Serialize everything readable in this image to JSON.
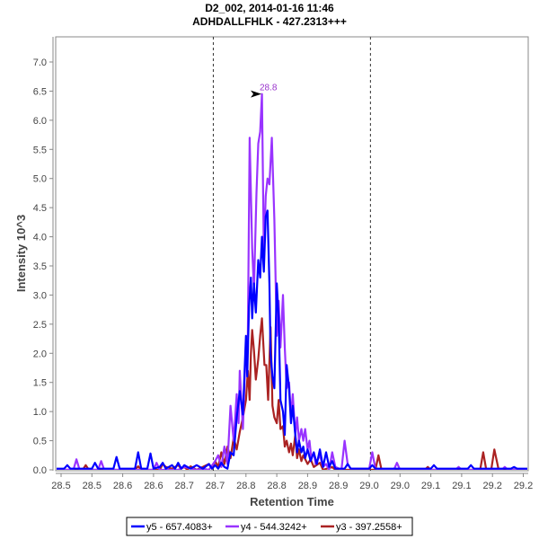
{
  "chart_data": {
    "type": "line",
    "title": "D2_002, 2014-01-16 11:46",
    "subtitle": "ADHDALLFHLK - 427.2313+++",
    "xlabel": "Retention Time",
    "ylabel": "Intensity 10^3",
    "xlim": [
      28.49,
      29.26
    ],
    "ylim": [
      0,
      7.4
    ],
    "grid": false,
    "x_ticks": [
      28.5,
      28.55,
      28.6,
      28.65,
      28.7,
      28.75,
      28.8,
      28.85,
      28.9,
      28.95,
      29.0,
      29.05,
      29.1,
      29.15,
      29.2,
      29.25
    ],
    "x_tick_labels": [
      "28.5",
      "28.5",
      "28.6",
      "28.6",
      "28.7",
      "28.7",
      "28.8",
      "28.8",
      "28.9",
      "28.9",
      "29.0",
      "29.0",
      "29.1",
      "29.1",
      "29.2",
      "29.2"
    ],
    "y_ticks": [
      0.0,
      0.5,
      1.0,
      1.5,
      2.0,
      2.5,
      3.0,
      3.5,
      4.0,
      4.5,
      5.0,
      5.5,
      6.0,
      6.5,
      7.0
    ],
    "y_tick_labels": [
      "0.0",
      "0.5",
      "1.0",
      "1.5",
      "2.0",
      "2.5",
      "3.0",
      "3.5",
      "4.0",
      "4.5",
      "5.0",
      "5.5",
      "6.0",
      "6.5",
      "7.0"
    ],
    "integration_bounds": [
      28.747,
      29.002
    ],
    "peak_annotation": {
      "text": "28.8",
      "x": 28.828,
      "y": 6.45,
      "color": "#9933cc"
    },
    "legend_position": "bottom-center",
    "series": [
      {
        "name": "y5 - 657.4083+",
        "color": "#0000ff",
        "points": [
          [
            28.49,
            0.02
          ],
          [
            28.505,
            0.02
          ],
          [
            28.51,
            0.08
          ],
          [
            28.515,
            0.02
          ],
          [
            28.55,
            0.02
          ],
          [
            28.555,
            0.12
          ],
          [
            28.56,
            0.02
          ],
          [
            28.585,
            0.02
          ],
          [
            28.59,
            0.22
          ],
          [
            28.595,
            0.02
          ],
          [
            28.62,
            0.02
          ],
          [
            28.625,
            0.3
          ],
          [
            28.63,
            0.02
          ],
          [
            28.64,
            0.02
          ],
          [
            28.645,
            0.28
          ],
          [
            28.65,
            0.02
          ],
          [
            28.66,
            0.05
          ],
          [
            28.665,
            0.12
          ],
          [
            28.67,
            0.02
          ],
          [
            28.68,
            0.08
          ],
          [
            28.685,
            0.02
          ],
          [
            28.69,
            0.12
          ],
          [
            28.695,
            0.02
          ],
          [
            28.7,
            0.08
          ],
          [
            28.705,
            0.05
          ],
          [
            28.71,
            0.02
          ],
          [
            28.72,
            0.08
          ],
          [
            28.73,
            0.02
          ],
          [
            28.74,
            0.1
          ],
          [
            28.745,
            0.02
          ],
          [
            28.75,
            0.08
          ],
          [
            28.755,
            0.02
          ],
          [
            28.76,
            0.12
          ],
          [
            28.765,
            0.05
          ],
          [
            28.77,
            0.02
          ],
          [
            28.775,
            0.3
          ],
          [
            28.78,
            0.25
          ],
          [
            28.785,
            0.9
          ],
          [
            28.79,
            1.35
          ],
          [
            28.795,
            0.95
          ],
          [
            28.8,
            2.3
          ],
          [
            28.802,
            1.6
          ],
          [
            28.805,
            2.8
          ],
          [
            28.808,
            3.3
          ],
          [
            28.81,
            2.6
          ],
          [
            28.813,
            3.2
          ],
          [
            28.816,
            2.7
          ],
          [
            28.82,
            3.6
          ],
          [
            28.823,
            3.3
          ],
          [
            28.826,
            4.0
          ],
          [
            28.829,
            3.4
          ],
          [
            28.832,
            4.35
          ],
          [
            28.835,
            4.45
          ],
          [
            28.838,
            3.2
          ],
          [
            28.84,
            2.0
          ],
          [
            28.843,
            1.6
          ],
          [
            28.846,
            1.4
          ],
          [
            28.85,
            3.2
          ],
          [
            28.853,
            2.6
          ],
          [
            28.856,
            1.2
          ],
          [
            28.86,
            1.0
          ],
          [
            28.863,
            0.6
          ],
          [
            28.866,
            1.8
          ],
          [
            28.87,
            1.4
          ],
          [
            28.873,
            0.8
          ],
          [
            28.876,
            1.1
          ],
          [
            28.88,
            0.6
          ],
          [
            28.883,
            0.3
          ],
          [
            28.886,
            0.5
          ],
          [
            28.89,
            0.3
          ],
          [
            28.893,
            0.4
          ],
          [
            28.896,
            0.2
          ],
          [
            28.9,
            0.35
          ],
          [
            28.905,
            0.15
          ],
          [
            28.91,
            0.3
          ],
          [
            28.915,
            0.1
          ],
          [
            28.92,
            0.35
          ],
          [
            28.925,
            0.05
          ],
          [
            28.93,
            0.3
          ],
          [
            28.935,
            0.05
          ],
          [
            28.94,
            0.15
          ],
          [
            28.945,
            0.02
          ],
          [
            28.96,
            0.02
          ],
          [
            28.965,
            0.1
          ],
          [
            28.97,
            0.02
          ],
          [
            29.0,
            0.02
          ],
          [
            29.005,
            0.08
          ],
          [
            29.01,
            0.02
          ],
          [
            29.1,
            0.02
          ],
          [
            29.105,
            0.08
          ],
          [
            29.11,
            0.02
          ],
          [
            29.16,
            0.02
          ],
          [
            29.165,
            0.08
          ],
          [
            29.17,
            0.02
          ],
          [
            29.23,
            0.02
          ],
          [
            29.235,
            0.05
          ],
          [
            29.24,
            0.02
          ],
          [
            29.26,
            0.02
          ]
        ]
      },
      {
        "name": "y4 - 544.3242+",
        "color": "#9933ff",
        "points": [
          [
            28.49,
            0.0
          ],
          [
            28.52,
            0.0
          ],
          [
            28.525,
            0.18
          ],
          [
            28.53,
            0.0
          ],
          [
            28.56,
            0.0
          ],
          [
            28.565,
            0.15
          ],
          [
            28.57,
            0.0
          ],
          [
            28.65,
            0.0
          ],
          [
            28.655,
            0.12
          ],
          [
            28.66,
            0.0
          ],
          [
            28.69,
            0.0
          ],
          [
            28.7,
            0.05
          ],
          [
            28.72,
            0.0
          ],
          [
            28.73,
            0.02
          ],
          [
            28.74,
            0.0
          ],
          [
            28.75,
            0.15
          ],
          [
            28.755,
            0.25
          ],
          [
            28.76,
            0.05
          ],
          [
            28.765,
            0.4
          ],
          [
            28.77,
            0.1
          ],
          [
            28.775,
            1.1
          ],
          [
            28.78,
            0.5
          ],
          [
            28.785,
            1.3
          ],
          [
            28.788,
            0.8
          ],
          [
            28.79,
            1.7
          ],
          [
            28.795,
            0.7
          ],
          [
            28.8,
            2.2
          ],
          [
            28.803,
            2.3
          ],
          [
            28.806,
            5.7
          ],
          [
            28.81,
            3.8
          ],
          [
            28.813,
            3.1
          ],
          [
            28.817,
            4.75
          ],
          [
            28.82,
            5.6
          ],
          [
            28.823,
            5.8
          ],
          [
            28.826,
            6.45
          ],
          [
            28.829,
            3.7
          ],
          [
            28.832,
            4.7
          ],
          [
            28.835,
            5.0
          ],
          [
            28.838,
            4.9
          ],
          [
            28.842,
            5.7
          ],
          [
            28.846,
            4.3
          ],
          [
            28.85,
            2.3
          ],
          [
            28.853,
            2.9
          ],
          [
            28.856,
            2.1
          ],
          [
            28.86,
            3.0
          ],
          [
            28.863,
            2.1
          ],
          [
            28.866,
            1.4
          ],
          [
            28.87,
            1.5
          ],
          [
            28.873,
            0.9
          ],
          [
            28.876,
            1.3
          ],
          [
            28.88,
            0.6
          ],
          [
            28.883,
            0.9
          ],
          [
            28.886,
            0.5
          ],
          [
            28.89,
            0.7
          ],
          [
            28.893,
            0.5
          ],
          [
            28.896,
            0.7
          ],
          [
            28.9,
            0.35
          ],
          [
            28.903,
            0.5
          ],
          [
            28.906,
            0.2
          ],
          [
            28.91,
            0.3
          ],
          [
            28.913,
            0.1
          ],
          [
            28.92,
            0.25
          ],
          [
            28.925,
            0.05
          ],
          [
            28.93,
            0.1
          ],
          [
            28.935,
            0.0
          ],
          [
            28.94,
            0.3
          ],
          [
            28.945,
            0.05
          ],
          [
            28.955,
            0.0
          ],
          [
            28.96,
            0.5
          ],
          [
            28.965,
            0.1
          ],
          [
            28.97,
            0.02
          ],
          [
            29.0,
            0.02
          ],
          [
            29.005,
            0.3
          ],
          [
            29.01,
            0.02
          ],
          [
            29.04,
            0.0
          ],
          [
            29.045,
            0.12
          ],
          [
            29.05,
            0.0
          ],
          [
            29.14,
            0.0
          ],
          [
            29.145,
            0.05
          ],
          [
            29.15,
            0.0
          ],
          [
            29.215,
            0.0
          ],
          [
            29.22,
            0.05
          ],
          [
            29.225,
            0.0
          ],
          [
            29.26,
            0.0
          ]
        ]
      },
      {
        "name": "y3 - 397.2558+",
        "color": "#aa2222",
        "points": [
          [
            28.49,
            0.0
          ],
          [
            28.535,
            0.0
          ],
          [
            28.54,
            0.08
          ],
          [
            28.545,
            0.0
          ],
          [
            28.62,
            0.0
          ],
          [
            28.625,
            0.06
          ],
          [
            28.63,
            0.0
          ],
          [
            28.66,
            0.0
          ],
          [
            28.665,
            0.1
          ],
          [
            28.67,
            0.05
          ],
          [
            28.68,
            0.02
          ],
          [
            28.69,
            0.08
          ],
          [
            28.695,
            0.02
          ],
          [
            28.7,
            0.05
          ],
          [
            28.705,
            0.0
          ],
          [
            28.71,
            0.06
          ],
          [
            28.72,
            0.0
          ],
          [
            28.73,
            0.05
          ],
          [
            28.74,
            0.1
          ],
          [
            28.745,
            0.02
          ],
          [
            28.75,
            0.15
          ],
          [
            28.755,
            0.05
          ],
          [
            28.76,
            0.3
          ],
          [
            28.765,
            0.1
          ],
          [
            28.77,
            0.4
          ],
          [
            28.775,
            0.2
          ],
          [
            28.78,
            0.55
          ],
          [
            28.785,
            0.35
          ],
          [
            28.79,
            0.65
          ],
          [
            28.795,
            0.9
          ],
          [
            28.8,
            1.2
          ],
          [
            28.803,
            1.7
          ],
          [
            28.806,
            1.2
          ],
          [
            28.808,
            2.0
          ],
          [
            28.81,
            2.4
          ],
          [
            28.813,
            2.05
          ],
          [
            28.816,
            1.55
          ],
          [
            28.82,
            1.9
          ],
          [
            28.823,
            2.3
          ],
          [
            28.826,
            2.6
          ],
          [
            28.83,
            1.8
          ],
          [
            28.833,
            1.8
          ],
          [
            28.836,
            1.2
          ],
          [
            28.84,
            2.45
          ],
          [
            28.843,
            1.1
          ],
          [
            28.846,
            0.9
          ],
          [
            28.85,
            0.8
          ],
          [
            28.853,
            1.2
          ],
          [
            28.856,
            0.7
          ],
          [
            28.86,
            0.75
          ],
          [
            28.863,
            0.4
          ],
          [
            28.866,
            0.5
          ],
          [
            28.87,
            0.3
          ],
          [
            28.873,
            0.45
          ],
          [
            28.876,
            0.25
          ],
          [
            28.88,
            0.6
          ],
          [
            28.883,
            0.2
          ],
          [
            28.886,
            0.35
          ],
          [
            28.89,
            0.15
          ],
          [
            28.893,
            0.25
          ],
          [
            28.9,
            0.1
          ],
          [
            28.905,
            0.18
          ],
          [
            28.91,
            0.05
          ],
          [
            28.92,
            0.12
          ],
          [
            28.925,
            0.0
          ],
          [
            28.94,
            0.05
          ],
          [
            28.945,
            0.0
          ],
          [
            29.01,
            0.0
          ],
          [
            29.015,
            0.25
          ],
          [
            29.02,
            0.0
          ],
          [
            29.09,
            0.0
          ],
          [
            29.095,
            0.05
          ],
          [
            29.1,
            0.0
          ],
          [
            29.18,
            0.0
          ],
          [
            29.185,
            0.3
          ],
          [
            29.19,
            0.0
          ],
          [
            29.198,
            0.0
          ],
          [
            29.203,
            0.35
          ],
          [
            29.21,
            0.0
          ],
          [
            29.26,
            0.0
          ]
        ]
      }
    ]
  }
}
